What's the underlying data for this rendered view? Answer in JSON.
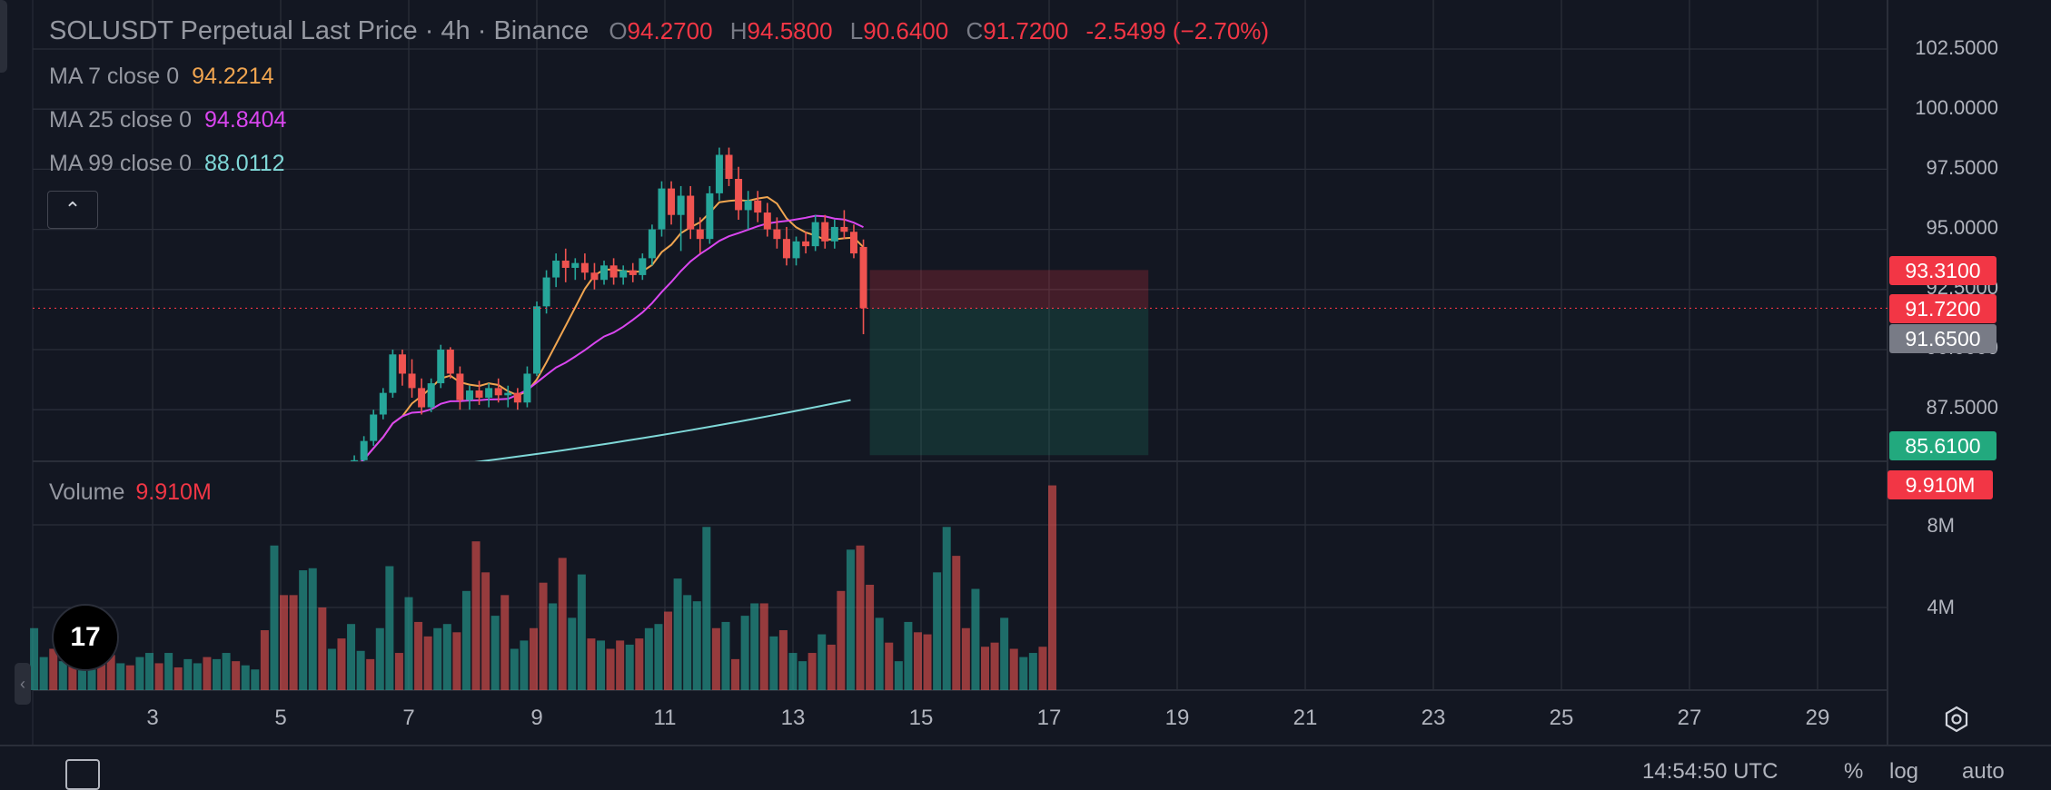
{
  "header": {
    "title": "SOLUSDT Perpetual Last Price · 4h · Binance",
    "open_key": "O",
    "open": "94.2700",
    "high_key": "H",
    "high": "94.5800",
    "low_key": "L",
    "low": "90.6400",
    "close_key": "C",
    "close": "91.7200",
    "change": "-2.5499 (−2.70%)"
  },
  "indicators": [
    {
      "label": "MA 7 close 0",
      "value": "94.2214",
      "color": "#f0a550"
    },
    {
      "label": "MA 25 close 0",
      "value": "94.8404",
      "color": "#d946ef"
    },
    {
      "label": "MA 99 close 0",
      "value": "88.0112",
      "color": "#7fd8d8"
    }
  ],
  "volume": {
    "label": "Volume",
    "value": "9.910M"
  },
  "price_axis": [
    "102.5000",
    "100.0000",
    "97.5000",
    "95.0000",
    "92.5000",
    "90.0000",
    "87.5000"
  ],
  "volume_axis": [
    "8M",
    "4M"
  ],
  "price_tags": [
    {
      "value": "93.3100",
      "color": "#f23645"
    },
    {
      "value": "91.7200",
      "color": "#f23645"
    },
    {
      "value": "91.6500",
      "color": "#787b86"
    },
    {
      "value": "85.6100",
      "color": "#22a97e"
    },
    {
      "value": "9.910M",
      "color": "#f23645"
    }
  ],
  "date_axis": [
    "3",
    "5",
    "7",
    "9",
    "11",
    "13",
    "15",
    "17",
    "19",
    "21",
    "23",
    "25",
    "27",
    "29"
  ],
  "bottom": {
    "time": "14:54:50 UTC",
    "percent": "%",
    "log": "log",
    "auto": "auto"
  },
  "colors": {
    "up": "#26a69a",
    "down": "#ef5350",
    "background": "#131722",
    "grid": "#2a2e39"
  },
  "chart_data": {
    "type": "candlestick",
    "interval": "4h",
    "x_unit": "day of month",
    "candles": [
      [
        6.0,
        84.2,
        84.9,
        84.0,
        84.7
      ],
      [
        6.15,
        84.7,
        85.6,
        84.5,
        85.4
      ],
      [
        6.3,
        85.4,
        86.4,
        85.1,
        86.2
      ],
      [
        6.45,
        86.2,
        87.5,
        86.0,
        87.3
      ],
      [
        6.6,
        87.3,
        88.4,
        87.1,
        88.2
      ],
      [
        6.75,
        88.2,
        90.0,
        88.0,
        89.8
      ],
      [
        6.9,
        89.8,
        90.0,
        88.5,
        89.0
      ],
      [
        7.05,
        89.0,
        89.6,
        88.0,
        88.4
      ],
      [
        7.2,
        88.4,
        88.8,
        87.3,
        87.6
      ],
      [
        7.35,
        87.6,
        88.8,
        87.4,
        88.6
      ],
      [
        7.5,
        88.6,
        90.2,
        88.4,
        90.0
      ],
      [
        7.65,
        90.0,
        90.1,
        88.8,
        89.0
      ],
      [
        7.8,
        89.0,
        89.3,
        87.5,
        87.9
      ],
      [
        7.95,
        87.9,
        88.5,
        87.5,
        88.3
      ],
      [
        8.1,
        88.3,
        88.7,
        87.7,
        88.0
      ],
      [
        8.25,
        88.0,
        88.6,
        87.6,
        88.4
      ],
      [
        8.4,
        88.4,
        88.8,
        87.8,
        88.1
      ],
      [
        8.55,
        88.1,
        88.5,
        87.6,
        88.2
      ],
      [
        8.7,
        88.2,
        88.4,
        87.5,
        87.8
      ],
      [
        8.85,
        87.8,
        89.3,
        87.6,
        89.0
      ],
      [
        9.0,
        89.0,
        92.0,
        88.9,
        91.8
      ],
      [
        9.15,
        91.8,
        93.3,
        91.5,
        93.0
      ],
      [
        9.3,
        93.0,
        94.0,
        92.6,
        93.7
      ],
      [
        9.45,
        93.7,
        94.2,
        92.8,
        93.4
      ],
      [
        9.6,
        93.4,
        93.8,
        92.9,
        93.6
      ],
      [
        9.75,
        93.6,
        94.0,
        92.9,
        93.2
      ],
      [
        9.9,
        93.2,
        93.6,
        92.5,
        92.9
      ],
      [
        10.05,
        92.9,
        93.7,
        92.7,
        93.5
      ],
      [
        10.2,
        93.5,
        93.8,
        92.7,
        93.0
      ],
      [
        10.35,
        93.0,
        93.5,
        92.7,
        93.3
      ],
      [
        10.5,
        93.3,
        93.6,
        92.8,
        93.1
      ],
      [
        10.65,
        93.1,
        94.0,
        92.9,
        93.8
      ],
      [
        10.8,
        93.8,
        95.2,
        93.5,
        95.0
      ],
      [
        10.95,
        95.0,
        97.0,
        94.7,
        96.7
      ],
      [
        11.1,
        96.7,
        97.0,
        95.2,
        95.6
      ],
      [
        11.25,
        95.6,
        96.8,
        94.1,
        96.4
      ],
      [
        11.4,
        96.4,
        96.8,
        94.6,
        95.0
      ],
      [
        11.55,
        95.0,
        95.5,
        94.0,
        94.6
      ],
      [
        11.7,
        94.6,
        96.8,
        94.4,
        96.5
      ],
      [
        11.85,
        96.5,
        98.4,
        96.2,
        98.1
      ],
      [
        12.0,
        98.1,
        98.4,
        96.8,
        97.1
      ],
      [
        12.15,
        97.1,
        97.6,
        95.4,
        95.8
      ],
      [
        12.3,
        95.8,
        96.6,
        95.0,
        96.2
      ],
      [
        12.45,
        96.2,
        96.6,
        95.3,
        95.7
      ],
      [
        12.6,
        95.7,
        96.1,
        94.7,
        95.0
      ],
      [
        12.75,
        95.0,
        95.5,
        94.2,
        94.6
      ],
      [
        12.9,
        94.6,
        95.1,
        93.5,
        93.8
      ],
      [
        13.05,
        93.8,
        94.7,
        93.5,
        94.5
      ],
      [
        13.2,
        94.5,
        94.9,
        94.0,
        94.3
      ],
      [
        13.35,
        94.3,
        95.6,
        94.1,
        95.3
      ],
      [
        13.5,
        95.3,
        95.6,
        94.2,
        94.5
      ],
      [
        13.65,
        94.5,
        95.4,
        94.2,
        95.1
      ],
      [
        13.8,
        95.1,
        95.8,
        94.6,
        94.9
      ],
      [
        13.95,
        94.9,
        95.2,
        93.8,
        94.0
      ],
      [
        14.1,
        94.27,
        94.58,
        90.64,
        91.72
      ]
    ],
    "volume_series": {
      "x0": 1.0,
      "dx": 0.15,
      "values": [
        2.0,
        3.0,
        1.6,
        2.0,
        1.4,
        1.8,
        1.2,
        1.0,
        1.5,
        1.7,
        1.3,
        1.2,
        1.6,
        1.8,
        1.3,
        1.8,
        1.1,
        1.5,
        1.3,
        1.6,
        1.5,
        1.8,
        1.4,
        1.2,
        1.0,
        2.9,
        7.0,
        4.6,
        4.6,
        5.8,
        5.9,
        4.0,
        2.0,
        2.5,
        3.2,
        1.9,
        1.5,
        3.0,
        6.0,
        1.8,
        4.5,
        3.3,
        2.6,
        3.0,
        3.2,
        2.8,
        4.8,
        7.2,
        5.7,
        3.6,
        4.6,
        2.0,
        2.4,
        3.0,
        5.2,
        4.2,
        6.4,
        3.5,
        5.6,
        2.5,
        2.4,
        2.0,
        2.4,
        2.2,
        2.5,
        3.0,
        3.2,
        3.8,
        5.4,
        4.6,
        4.3,
        7.9,
        3.0,
        3.3,
        1.5,
        3.6,
        4.2,
        4.2,
        2.6,
        2.9,
        1.8,
        1.4,
        1.8,
        2.7,
        2.2,
        4.8,
        6.8,
        7.0,
        5.1,
        3.5,
        2.3,
        1.4,
        3.3,
        2.8,
        2.7,
        5.7,
        7.9,
        6.5,
        3.0,
        4.9,
        2.1,
        2.3,
        3.5,
        2.0,
        1.6,
        1.8,
        2.1,
        9.91
      ],
      "ups": [
        1,
        1,
        1,
        0,
        1,
        0,
        1,
        1,
        0,
        0,
        1,
        0,
        1,
        1,
        0,
        1,
        0,
        1,
        1,
        0,
        1,
        1,
        0,
        1,
        1,
        0,
        1,
        0,
        0,
        1,
        1,
        0,
        1,
        0,
        1,
        1,
        0,
        1,
        1,
        0,
        1,
        0,
        0,
        1,
        1,
        0,
        1,
        0,
        0,
        1,
        0,
        1,
        1,
        0,
        0,
        1,
        0,
        1,
        1,
        0,
        1,
        0,
        0,
        1,
        0,
        1,
        1,
        0,
        1,
        1,
        1,
        1,
        0,
        1,
        0,
        1,
        1,
        0,
        1,
        0,
        1,
        1,
        0,
        1,
        0,
        0,
        1,
        0,
        0,
        1,
        0,
        1,
        1,
        0,
        0,
        1,
        1,
        0,
        0,
        1,
        0,
        0,
        1,
        0,
        1,
        1,
        0,
        0
      ]
    },
    "ma_values_at_last": {
      "ma7": 94.2214,
      "ma25": 94.8404,
      "ma99": 88.0112
    },
    "position": {
      "entry": 91.72,
      "stop": 93.31,
      "target": 85.61,
      "x_start": 14.2,
      "x_end": 18.55
    },
    "last_price": 91.72,
    "y_range": [
      84.0,
      103.5
    ],
    "volume_range": [
      0,
      10
    ],
    "x_range": [
      1.15,
      30.1
    ]
  }
}
